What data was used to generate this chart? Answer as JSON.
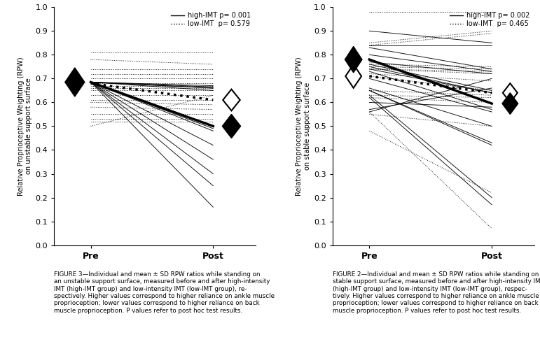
{
  "fig3": {
    "ylabel": "Relative Proprioceptive Weighting (RPW)\non unstable support surface",
    "legend_high": "high-IMT p= 0.001",
    "legend_low": "low-IMT  p= 0.579",
    "mean_pre_high": 0.685,
    "mean_post_high": 0.5,
    "mean_pre_low": 0.68,
    "mean_post_low": 0.61,
    "high_imt_pre": [
      0.685,
      0.685,
      0.685,
      0.685,
      0.685,
      0.685,
      0.685,
      0.685,
      0.685,
      0.685,
      0.685,
      0.685,
      0.685
    ],
    "high_imt_post": [
      0.66,
      0.665,
      0.67,
      0.65,
      0.66,
      0.5,
      0.49,
      0.48,
      0.42,
      0.36,
      0.3,
      0.25,
      0.16
    ],
    "low_imt_pre": [
      0.81,
      0.78,
      0.74,
      0.72,
      0.7,
      0.68,
      0.67,
      0.66,
      0.65,
      0.63,
      0.61,
      0.6,
      0.58,
      0.55,
      0.53,
      0.52,
      0.5
    ],
    "low_imt_post": [
      0.81,
      0.76,
      0.74,
      0.72,
      0.7,
      0.68,
      0.67,
      0.66,
      0.65,
      0.63,
      0.61,
      0.59,
      0.57,
      0.55,
      0.53,
      0.52,
      0.63
    ],
    "caption1": "FIGURE 3",
    "caption2": "—Individual and mean ± SD RPW ratios while standing on\nan unstable support surface, measured before and after high-intensity\nIMT (high-IMT group) and low-intensity IMT (low-IMT group), re-\nspectively. Higher values correspond to higher reliance on ankle muscle\nproprioception; lower values correspond to higher reliance on back\nmuscle proprioception. ",
    "caption3": "P",
    "caption4": " values refer to ",
    "caption5": "post hoc",
    "caption6": " test results."
  },
  "fig2": {
    "ylabel": "Relative Proprioceptive Weighting (RPW)\non stable support surface",
    "legend_high": "high-IMT p= 0.002",
    "legend_low": "low-IMT  p= 0.465",
    "mean_pre_high": 0.78,
    "mean_post_high": 0.595,
    "mean_pre_low": 0.71,
    "mean_post_low": 0.64,
    "high_imt_pre": [
      0.9,
      0.84,
      0.83,
      0.8,
      0.77,
      0.76,
      0.75,
      0.74,
      0.73,
      0.7,
      0.66,
      0.65,
      0.65,
      0.63,
      0.62,
      0.6,
      0.57,
      0.56
    ],
    "high_imt_post": [
      0.85,
      0.84,
      0.74,
      0.73,
      0.72,
      0.65,
      0.64,
      0.64,
      0.57,
      0.56,
      0.5,
      0.43,
      0.42,
      0.2,
      0.17,
      0.58,
      0.66,
      0.7
    ],
    "low_imt_pre": [
      0.98,
      0.85,
      0.84,
      0.76,
      0.75,
      0.74,
      0.74,
      0.72,
      0.71,
      0.65,
      0.63,
      0.62,
      0.56,
      0.55,
      0.48
    ],
    "low_imt_post": [
      0.98,
      0.9,
      0.89,
      0.75,
      0.74,
      0.73,
      0.72,
      0.69,
      0.65,
      0.63,
      0.62,
      0.6,
      0.07,
      0.5,
      0.22
    ],
    "caption1": "FIGURE 2",
    "caption2": "—Individual and mean ± SD RPW ratios while standing on a\nstable support surface, measured before and after high-intensity IMT\n(high-IMT group) and low-intensity IMT (low-IMT group), respec-\ntively. Higher values correspond to higher reliance on ankle muscle\nproprioception; lower values correspond to higher reliance on back\nmuscle proprioception. ",
    "caption3": "P",
    "caption4": " values refer to ",
    "caption5": "post hoc",
    "caption6": " test results."
  },
  "ylim": [
    0.0,
    1.0
  ],
  "yticks": [
    0.0,
    0.1,
    0.2,
    0.3,
    0.4,
    0.5,
    0.6,
    0.7,
    0.8,
    0.9,
    1.0
  ],
  "background": "#ffffff"
}
